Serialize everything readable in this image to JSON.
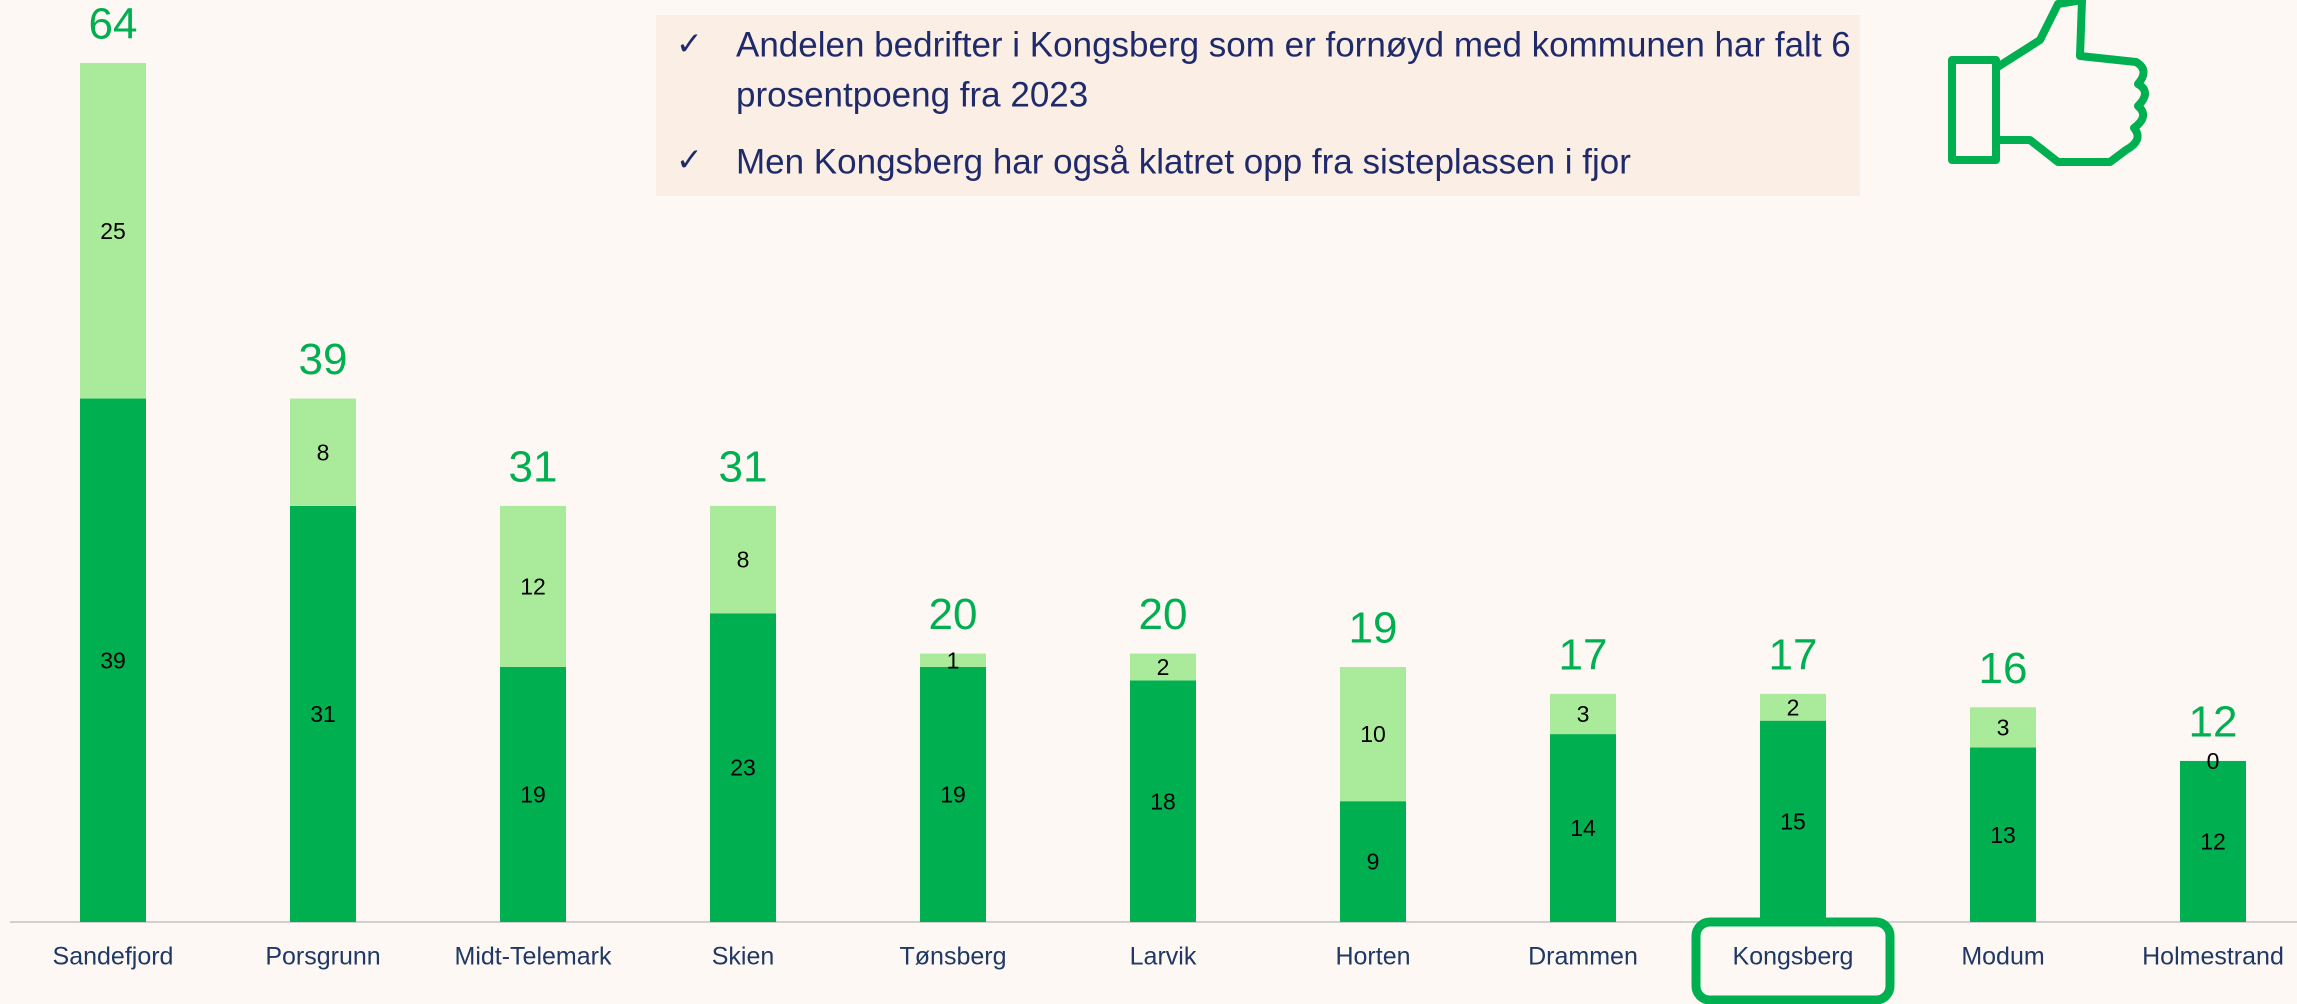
{
  "chart_data": {
    "type": "stacked-bar",
    "annotations": [
      "Andelen bedrifter i Kongsberg som er fornøyd med kommunen har falt 6",
      "prosentpoeng fra 2023",
      "Men Kongsberg har også klatret opp fra sisteplassen i fjor"
    ],
    "categories": [
      "Sandefjord",
      "Porsgrunn",
      "Midt-Telemark",
      "Skien",
      "Tønsberg",
      "Larvik",
      "Horten",
      "Drammen",
      "Kongsberg",
      "Modum",
      "Holmestrand"
    ],
    "series": [
      {
        "color": "#00b050",
        "values": [
          39,
          31,
          19,
          23,
          19,
          18,
          9,
          14,
          15,
          13,
          12
        ]
      },
      {
        "color": "#a9eb9a",
        "values": [
          25,
          8,
          12,
          8,
          1,
          2,
          10,
          3,
          2,
          3,
          0
        ]
      }
    ],
    "totals": [
      64,
      39,
      31,
      31,
      20,
      20,
      19,
      17,
      17,
      16,
      12
    ],
    "total_color": "#00b050",
    "highlight": "Kongsberg",
    "ylim": [
      0,
      64
    ]
  }
}
